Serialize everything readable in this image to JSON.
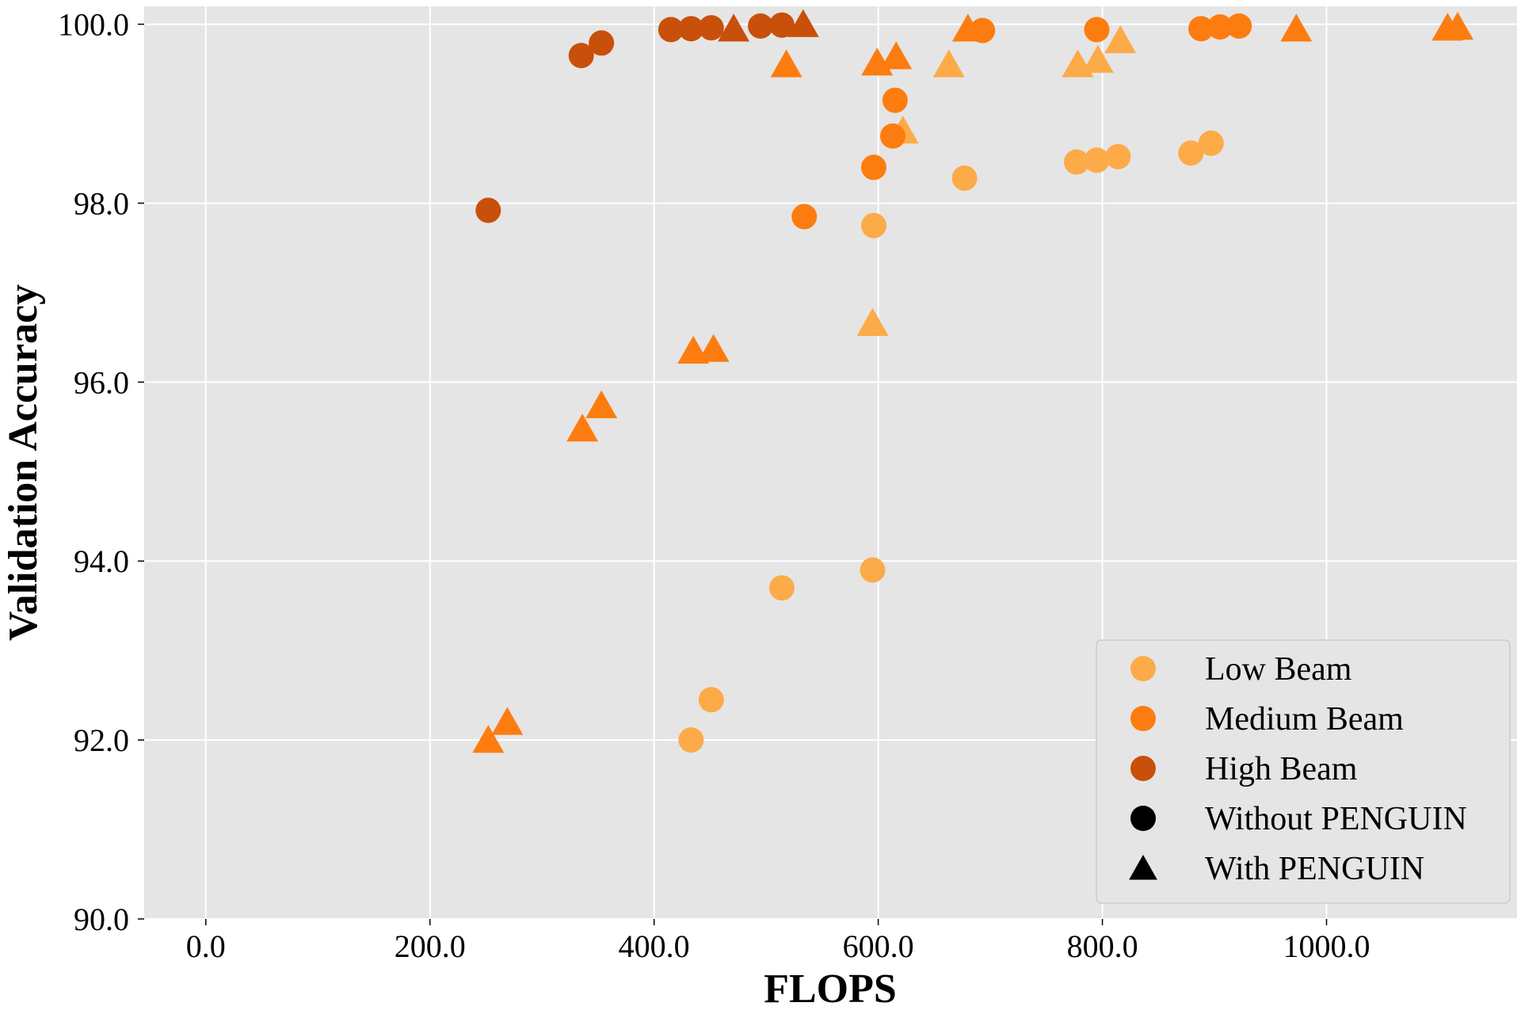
{
  "chart_data": {
    "type": "scatter",
    "xlabel": "FLOPS",
    "ylabel": "Validation Accuracy",
    "xlim": [
      -55,
      1170
    ],
    "ylim": [
      90.0,
      100.2
    ],
    "x_ticks": [
      0,
      200,
      400,
      600,
      800,
      1000
    ],
    "y_ticks": [
      90,
      92,
      94,
      96,
      98,
      100
    ],
    "x_tick_labels": [
      "0.0",
      "200.0",
      "400.0",
      "600.0",
      "800.0",
      "1000.0"
    ],
    "y_tick_labels": [
      "90.0",
      "92.0",
      "94.0",
      "96.0",
      "98.0",
      "100.0"
    ],
    "grid": true,
    "legend_position": "bottom-right",
    "legend": [
      {
        "label": "Low Beam",
        "color": "#fdaa48",
        "marker": "circle"
      },
      {
        "label": "Medium Beam",
        "color": "#fd7c0f",
        "marker": "circle"
      },
      {
        "label": "High Beam",
        "color": "#c8500a",
        "marker": "circle"
      },
      {
        "label": "Without PENGUIN",
        "color": "#000000",
        "marker": "circle"
      },
      {
        "label": "With PENGUIN",
        "color": "#000000",
        "marker": "triangle"
      }
    ],
    "series": [
      {
        "beam": "Low Beam",
        "penguin": "Without PENGUIN",
        "marker": "circle",
        "color": "#fdaa48",
        "points": [
          [
            433,
            92.0
          ],
          [
            451,
            92.45
          ],
          [
            514,
            93.7
          ],
          [
            595,
            93.9
          ],
          [
            596,
            97.75
          ],
          [
            677,
            98.28
          ],
          [
            777,
            98.46
          ],
          [
            795,
            98.48
          ],
          [
            814,
            98.52
          ],
          [
            879,
            98.56
          ],
          [
            897,
            98.67
          ]
        ]
      },
      {
        "beam": "Low Beam",
        "penguin": "With PENGUIN",
        "marker": "triangle",
        "color": "#fdaa48",
        "points": [
          [
            595,
            96.66
          ],
          [
            622,
            98.81
          ],
          [
            663,
            99.55
          ],
          [
            778,
            99.55
          ],
          [
            796,
            99.6
          ],
          [
            816,
            99.82
          ]
        ]
      },
      {
        "beam": "Medium Beam",
        "penguin": "Without PENGUIN",
        "marker": "circle",
        "color": "#fd7c0f",
        "points": [
          [
            534,
            97.85
          ],
          [
            596,
            98.4
          ],
          [
            613,
            98.75
          ],
          [
            615,
            99.15
          ],
          [
            693,
            99.93
          ],
          [
            795,
            99.94
          ],
          [
            888,
            99.95
          ],
          [
            905,
            99.97
          ],
          [
            922,
            99.98
          ]
        ]
      },
      {
        "beam": "Medium Beam",
        "penguin": "With PENGUIN",
        "marker": "triangle",
        "color": "#fd7c0f",
        "points": [
          [
            252,
            92.0
          ],
          [
            269,
            92.2
          ],
          [
            336,
            95.48
          ],
          [
            353,
            95.74
          ],
          [
            435,
            96.35
          ],
          [
            453,
            96.37
          ],
          [
            518,
            99.55
          ],
          [
            599,
            99.57
          ],
          [
            616,
            99.64
          ],
          [
            680,
            99.95
          ],
          [
            973,
            99.95
          ],
          [
            1108,
            99.96
          ],
          [
            1117,
            99.97
          ]
        ]
      },
      {
        "beam": "High Beam",
        "penguin": "Without PENGUIN",
        "marker": "circle",
        "color": "#c8500a",
        "points": [
          [
            252,
            97.92
          ],
          [
            335,
            99.65
          ],
          [
            353,
            99.79
          ],
          [
            415,
            99.94
          ],
          [
            433,
            99.95
          ],
          [
            451,
            99.96
          ],
          [
            495,
            99.98
          ],
          [
            514,
            99.99
          ]
        ]
      },
      {
        "beam": "High Beam",
        "penguin": "With PENGUIN",
        "marker": "triangle",
        "color": "#c8500a",
        "points": [
          [
            471,
            99.95
          ],
          [
            533,
            100.0
          ]
        ]
      }
    ]
  }
}
